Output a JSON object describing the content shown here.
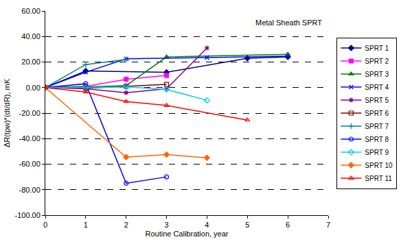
{
  "chart_data": {
    "type": "line",
    "annotation": "Metal Sheath SPRT",
    "x_label": "Routine Calibration, year",
    "y_label": "ΔR(tpw)*(dt/dR), mK",
    "xlim": [
      0,
      7
    ],
    "xticks": [
      0,
      1,
      2,
      3,
      4,
      5,
      6,
      7
    ],
    "ylim": [
      -100,
      60
    ],
    "yticks": [
      {
        "value": -100,
        "label": "-100.00"
      },
      {
        "value": -80,
        "label": "-80.00"
      },
      {
        "value": -60,
        "label": "-60.00"
      },
      {
        "value": -40,
        "label": "-40.00"
      },
      {
        "value": -20,
        "label": "-20.00"
      },
      {
        "value": 0,
        "label": "0.00"
      },
      {
        "value": 20,
        "label": "20.00"
      },
      {
        "value": 40,
        "label": "40.00"
      },
      {
        "value": 60,
        "label": "60.00"
      }
    ],
    "grid": true,
    "legend": "right",
    "series": [
      {
        "name": "SPRT 1",
        "color": "#000080",
        "marker": "diamond",
        "x": [
          0,
          1,
          3,
          5,
          6
        ],
        "values": [
          0,
          13,
          12,
          23,
          24
        ]
      },
      {
        "name": "SPRT 2",
        "color": "#FF00FF",
        "marker": "square",
        "x": [
          0,
          1,
          2,
          3
        ],
        "values": [
          0,
          1,
          6.5,
          9.5
        ]
      },
      {
        "name": "SPRT 3",
        "color": "#008000",
        "marker": "triangle-up",
        "x": [
          0,
          1,
          2,
          3,
          6
        ],
        "values": [
          0,
          0.5,
          1.5,
          24,
          26
        ]
      },
      {
        "name": "SPRT 4",
        "color": "#0000FF",
        "marker": "x-thin-open",
        "x": [
          0,
          1,
          2,
          4,
          6
        ],
        "values": [
          0,
          12,
          22.5,
          23.5,
          24.5
        ]
      },
      {
        "name": "SPRT 5",
        "color": "#800080",
        "marker": "asterisk-open",
        "x": [
          0,
          1,
          2,
          3,
          4
        ],
        "values": [
          0,
          -1,
          -4,
          -1,
          31
        ]
      },
      {
        "name": "SPRT 6",
        "color": "#800000",
        "marker": "square-open",
        "x": [
          0,
          1,
          2,
          3
        ],
        "values": [
          0,
          -0.5,
          1,
          2.5
        ]
      },
      {
        "name": "SPRT 7",
        "color": "#008080",
        "marker": "cross-thin-open",
        "x": [
          0,
          1,
          2
        ],
        "values": [
          0,
          18,
          22
        ]
      },
      {
        "name": "SPRT 8",
        "color": "#0000FF",
        "marker": "circle-open",
        "x": [
          0,
          1,
          2,
          3
        ],
        "values": [
          0,
          3,
          -75,
          -70
        ]
      },
      {
        "name": "SPRT 9",
        "color": "#00CCFF",
        "marker": "diamond-open",
        "x": [
          0,
          1,
          2,
          3,
          4
        ],
        "values": [
          0,
          0,
          0.5,
          -1.5,
          -10
        ]
      },
      {
        "name": "SPRT 10",
        "color": "#FF6600",
        "marker": "diamond",
        "x": [
          0,
          2,
          3,
          4
        ],
        "values": [
          0,
          -54.5,
          -52.5,
          -55
        ]
      },
      {
        "name": "SPRT 11",
        "color": "#FF0000",
        "marker": "triangle-up-open",
        "x": [
          0,
          1,
          2,
          3,
          5
        ],
        "values": [
          0,
          -3.5,
          -11,
          -14,
          -25.5
        ]
      }
    ]
  }
}
